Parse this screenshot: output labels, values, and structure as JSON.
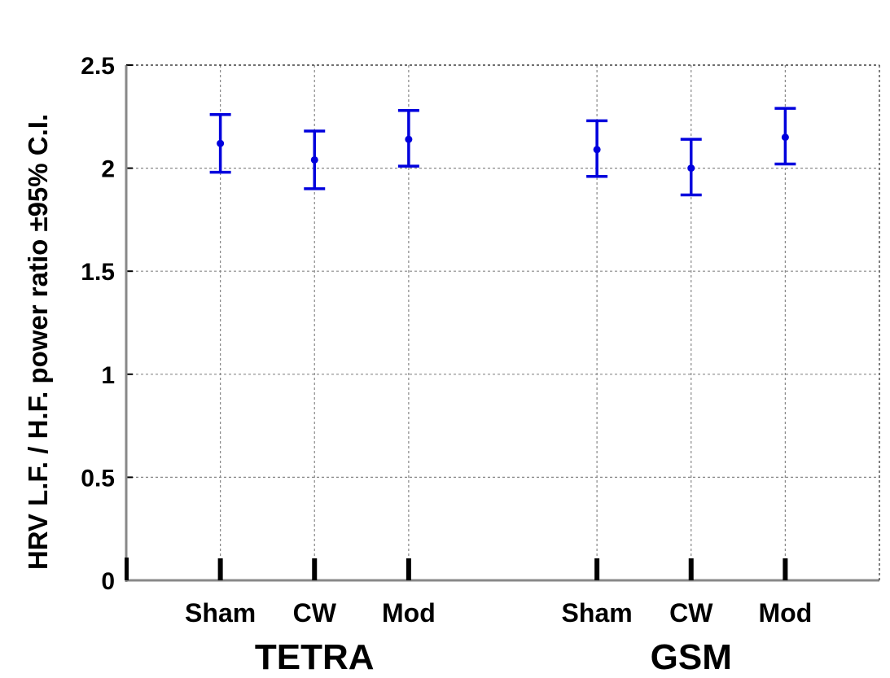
{
  "chart_data": {
    "type": "errorbar",
    "title": "",
    "ylabel": "HRV L.F. / H.F. power ratio   ±95% C.I.",
    "xlabel": "",
    "ylim": [
      0,
      2.5
    ],
    "yticks": [
      0,
      0.5,
      1,
      1.5,
      2,
      2.5
    ],
    "ytick_labels": [
      "0",
      "0.5",
      "1",
      "1.5",
      "2",
      "2.5"
    ],
    "grid": true,
    "legend": "none",
    "color": "#0000dd",
    "groups": [
      {
        "label": "TETRA",
        "categories": [
          "Sham",
          "CW",
          "Mod"
        ],
        "means": [
          2.12,
          2.04,
          2.14
        ],
        "lower": [
          1.98,
          1.9,
          2.01
        ],
        "upper": [
          2.26,
          2.18,
          2.28
        ]
      },
      {
        "label": "GSM",
        "categories": [
          "Sham",
          "CW",
          "Mod"
        ],
        "means": [
          2.09,
          2.0,
          2.15
        ],
        "lower": [
          1.96,
          1.87,
          2.02
        ],
        "upper": [
          2.23,
          2.14,
          2.29
        ]
      }
    ]
  }
}
